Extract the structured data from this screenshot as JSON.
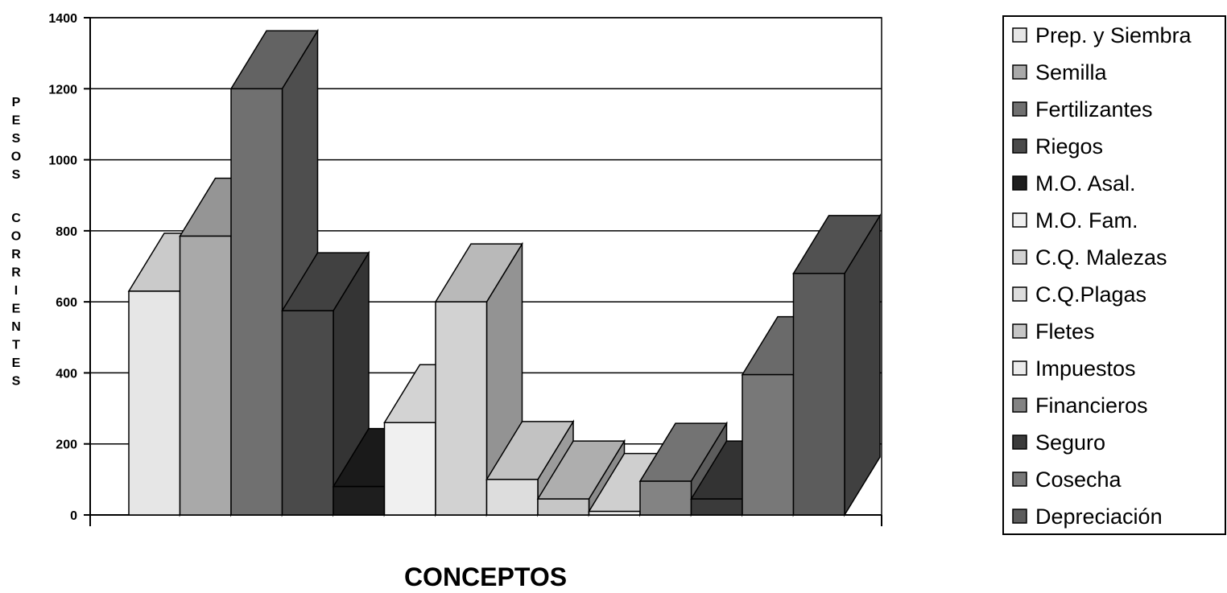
{
  "chart_data": {
    "type": "bar",
    "title": "",
    "xlabel": "CONCEPTOS",
    "ylabel": "PESOS CORRIENTES",
    "ylim": [
      0,
      1400
    ],
    "yticks": [
      0,
      200,
      400,
      600,
      800,
      1000,
      1200,
      1400
    ],
    "grid": true,
    "legend_position": "right",
    "categories": [
      "Prep. y Siembra",
      "Semilla",
      "Fertilizantes",
      "Riegos",
      "M.O. Asal.",
      "M.O. Fam.",
      "C.Q. Malezas",
      "C.Q.Plagas",
      "Fletes",
      "Impuestos",
      "Financieros",
      "Seguro",
      "Cosecha",
      "Depreciación"
    ],
    "values": [
      630,
      785,
      1200,
      575,
      80,
      260,
      600,
      100,
      45,
      10,
      95,
      45,
      395,
      680
    ],
    "series": [
      {
        "name": "Prep. y Siembra",
        "value": 630,
        "color": "#e6e6e6"
      },
      {
        "name": "Semilla",
        "value": 785,
        "color": "#a9a9a9"
      },
      {
        "name": "Fertilizantes",
        "value": 1200,
        "color": "#707070"
      },
      {
        "name": "Riegos",
        "value": 575,
        "color": "#4a4a4a"
      },
      {
        "name": "M.O. Asal.",
        "value": 80,
        "color": "#1e1e1e"
      },
      {
        "name": "M.O. Fam.",
        "value": 260,
        "color": "#f0f0f0"
      },
      {
        "name": "C.Q. Malezas",
        "value": 600,
        "color": "#d2d2d2"
      },
      {
        "name": "C.Q.Plagas",
        "value": 100,
        "color": "#dddddd"
      },
      {
        "name": "Fletes",
        "value": 45,
        "color": "#c6c6c6"
      },
      {
        "name": "Impuestos",
        "value": 10,
        "color": "#ebebeb"
      },
      {
        "name": "Financieros",
        "value": 95,
        "color": "#838383"
      },
      {
        "name": "Seguro",
        "value": 45,
        "color": "#3a3a3a"
      },
      {
        "name": "Cosecha",
        "value": 395,
        "color": "#787878"
      },
      {
        "name": "Depreciación",
        "value": 680,
        "color": "#5c5c5c"
      }
    ]
  }
}
